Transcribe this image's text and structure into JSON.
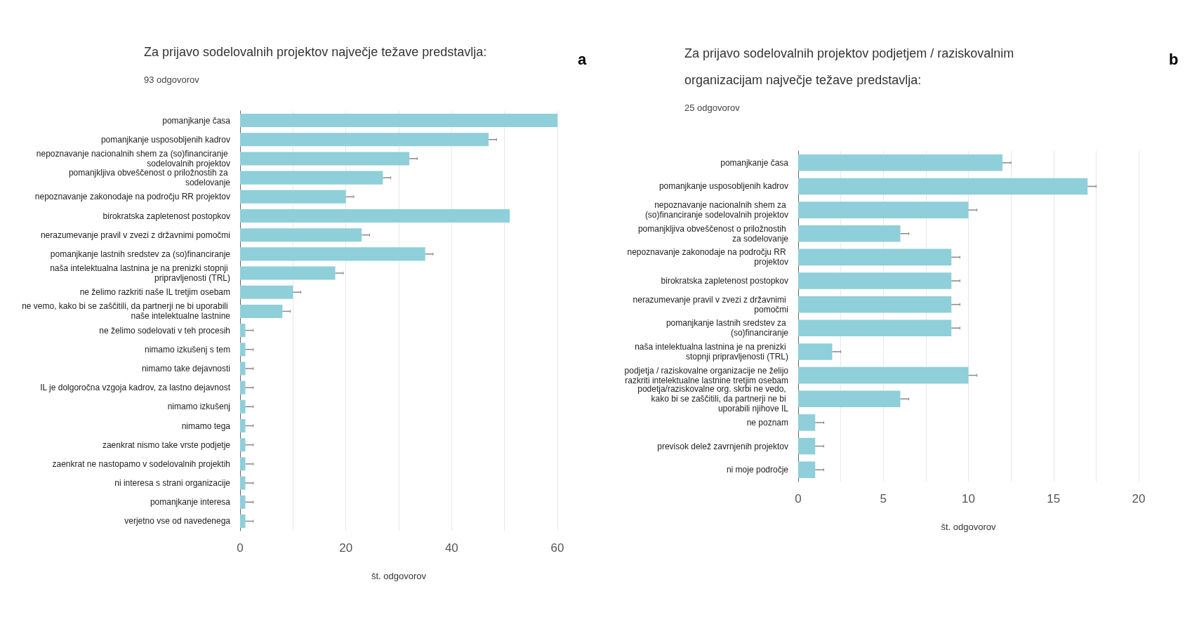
{
  "chart_data": [
    {
      "type": "bar",
      "orientation": "horizontal",
      "title": "Za prijavo sodelovalnih projektov največje težave predstavlja:",
      "subtitle": "93 odgovorov",
      "xlabel": "št. odgovorov",
      "annotations": [
        "a"
      ],
      "categories": [
        "pomanjkanje časa",
        "pomanjkanje usposobljenih kadrov",
        "nepoznavanje nacionalnih shem za (so)financiranje sodelovalnih projektov",
        "pomanjkljiva obveščenost o priložnostih za sodelovanje",
        "nepoznavanje zakonodaje na področju RR projektov",
        "birokratska zapletenost postopkov",
        "nerazumevanje pravil v zvezi z državnimi pomočmi",
        "pomanjkanje lastnih sredstev za (so)financiranje",
        "naša intelektualna lastnina je na prenizki stopnji pripravljenosti (TRL)",
        "ne želimo razkriti naše IL tretjim osebam",
        "ne vemo, kako bi se zaščitili, da partnerji ne bi uporabili naše intelektualne lastnine",
        "ne želimo sodelovati v teh procesih",
        "nimamo izkušenj s tem",
        "nimamo take dejavnosti",
        "IL je dolgoročna vzgoja kadrov, za lastno dejavnost",
        "nimamo izkušenj",
        "nimamo tega",
        "zaenkrat nismo take vrste podjetje",
        "zaenkrat ne nastopamo v sodelovalnih projektih",
        "ni interesa s strani organizacije",
        "pomanjkanje interesa",
        "verjetno vse od navedenega"
      ],
      "values": [
        60,
        47,
        32,
        27,
        20,
        51,
        23,
        35,
        18,
        10,
        8,
        1,
        1,
        1,
        1,
        1,
        1,
        1,
        1,
        1,
        1,
        1
      ],
      "errors": [
        null,
        [
          47,
          48.5
        ],
        [
          32,
          33.5
        ],
        [
          27,
          28.5
        ],
        [
          20,
          21.5
        ],
        null,
        [
          23,
          24.5
        ],
        [
          35,
          36.5
        ],
        [
          18,
          19.5
        ],
        [
          10,
          11.5
        ],
        [
          8,
          9.5
        ],
        [
          1,
          2.5
        ],
        [
          1,
          2.5
        ],
        [
          1,
          2.5
        ],
        [
          1,
          2.5
        ],
        [
          1,
          2.5
        ],
        [
          1,
          2.5
        ],
        [
          1,
          2.5
        ],
        [
          1,
          2.5
        ],
        [
          1,
          2.5
        ],
        [
          1,
          2.5
        ],
        [
          1,
          2.5
        ]
      ],
      "color": "#8ecfd9",
      "xlim": [
        0,
        60
      ],
      "xticks": [
        0,
        {
          "value": 10,
          "label": null
        },
        20,
        {
          "value": 30,
          "label": null
        },
        40,
        {
          "value": 50,
          "label": null
        },
        60
      ],
      "grid": "x"
    },
    {
      "type": "bar",
      "orientation": "horizontal",
      "title": "Za prijavo sodelovalnih projektov podjetjem / raziskovalnim organizacijam največje težave predstavlja:",
      "subtitle": "25 odgovorov",
      "xlabel": "št. odgovorov",
      "annotations": [
        "b"
      ],
      "categories": [
        "pomanjkanje časa",
        "pomanjkanje usposobljenih kadrov",
        "nepoznavanje nacionalnih shem za (so)financiranje sodelovalnih projektov",
        "pomanjkljiva obveščenost o priložnostih za sodelovanje",
        "nepoznavanje zakonodaje na področju RR projektov",
        "birokratska zapletenost postopkov",
        "nerazumevanje pravil v zvezi z državnimi pomočmi",
        "pomanjkanje lastnih sredstev za (so)financiranje",
        "naša intelektualna lastnina je na prenizki stopnji pripravljenosti (TRL)",
        "podjetja / raziskovalne organizacije ne želijo razkriti intelektualne lastnine tretjim osebam",
        "podetja/raziskovalne org. skrbi ne vedo, kako bi se zaščitili, da partnerji ne bi uporabili njihove IL",
        "ne poznam",
        "previsok delež zavrnjenih projektov",
        "ni moje področje"
      ],
      "values": [
        12,
        17,
        10,
        6,
        9,
        9,
        9,
        9,
        2,
        10,
        6,
        1,
        1,
        1
      ],
      "errors": [
        [
          12,
          12.5
        ],
        [
          17,
          17.5
        ],
        [
          10,
          10.5
        ],
        [
          6,
          6.5
        ],
        [
          9,
          9.5
        ],
        [
          9,
          9.5
        ],
        [
          9,
          9.5
        ],
        [
          9,
          9.5
        ],
        [
          2,
          2.5
        ],
        [
          10,
          10.5
        ],
        [
          6,
          6.5
        ],
        [
          1,
          1.5
        ],
        [
          1,
          1.5
        ],
        [
          1,
          1.5
        ]
      ],
      "color": "#8ecfd9",
      "xlim": [
        0,
        20
      ],
      "xticks": [
        0,
        {
          "value": 2.5,
          "label": null
        },
        5,
        {
          "value": 7.5,
          "label": null
        },
        10,
        {
          "value": 12.5,
          "label": null
        },
        15,
        {
          "value": 17.5,
          "label": null
        },
        20
      ],
      "grid": "x"
    }
  ]
}
